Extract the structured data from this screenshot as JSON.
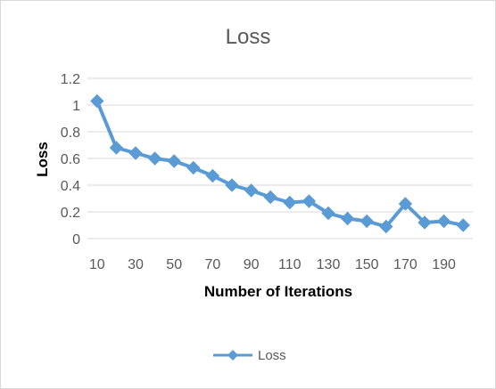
{
  "chart_data": {
    "type": "line",
    "title": "Loss",
    "xlabel": "Number of Iterations",
    "ylabel": "Loss",
    "x": [
      10,
      20,
      30,
      40,
      50,
      60,
      70,
      80,
      90,
      100,
      110,
      120,
      130,
      140,
      150,
      160,
      170,
      180,
      190,
      200
    ],
    "x_tick_labels": [
      "10",
      "30",
      "50",
      "70",
      "90",
      "110",
      "130",
      "150",
      "170",
      "190"
    ],
    "y_tick_labels": [
      "0",
      "0.2",
      "0.4",
      "0.6",
      "0.8",
      "1",
      "1.2"
    ],
    "ylim": [
      0,
      1.2
    ],
    "grid": true,
    "legend_position": "bottom",
    "series": [
      {
        "name": "Loss",
        "color": "#5b9bd5",
        "marker": "diamond",
        "values": [
          1.03,
          0.68,
          0.64,
          0.6,
          0.58,
          0.53,
          0.47,
          0.4,
          0.36,
          0.31,
          0.27,
          0.28,
          0.19,
          0.15,
          0.13,
          0.09,
          0.26,
          0.12,
          0.13,
          0.1
        ]
      }
    ]
  }
}
